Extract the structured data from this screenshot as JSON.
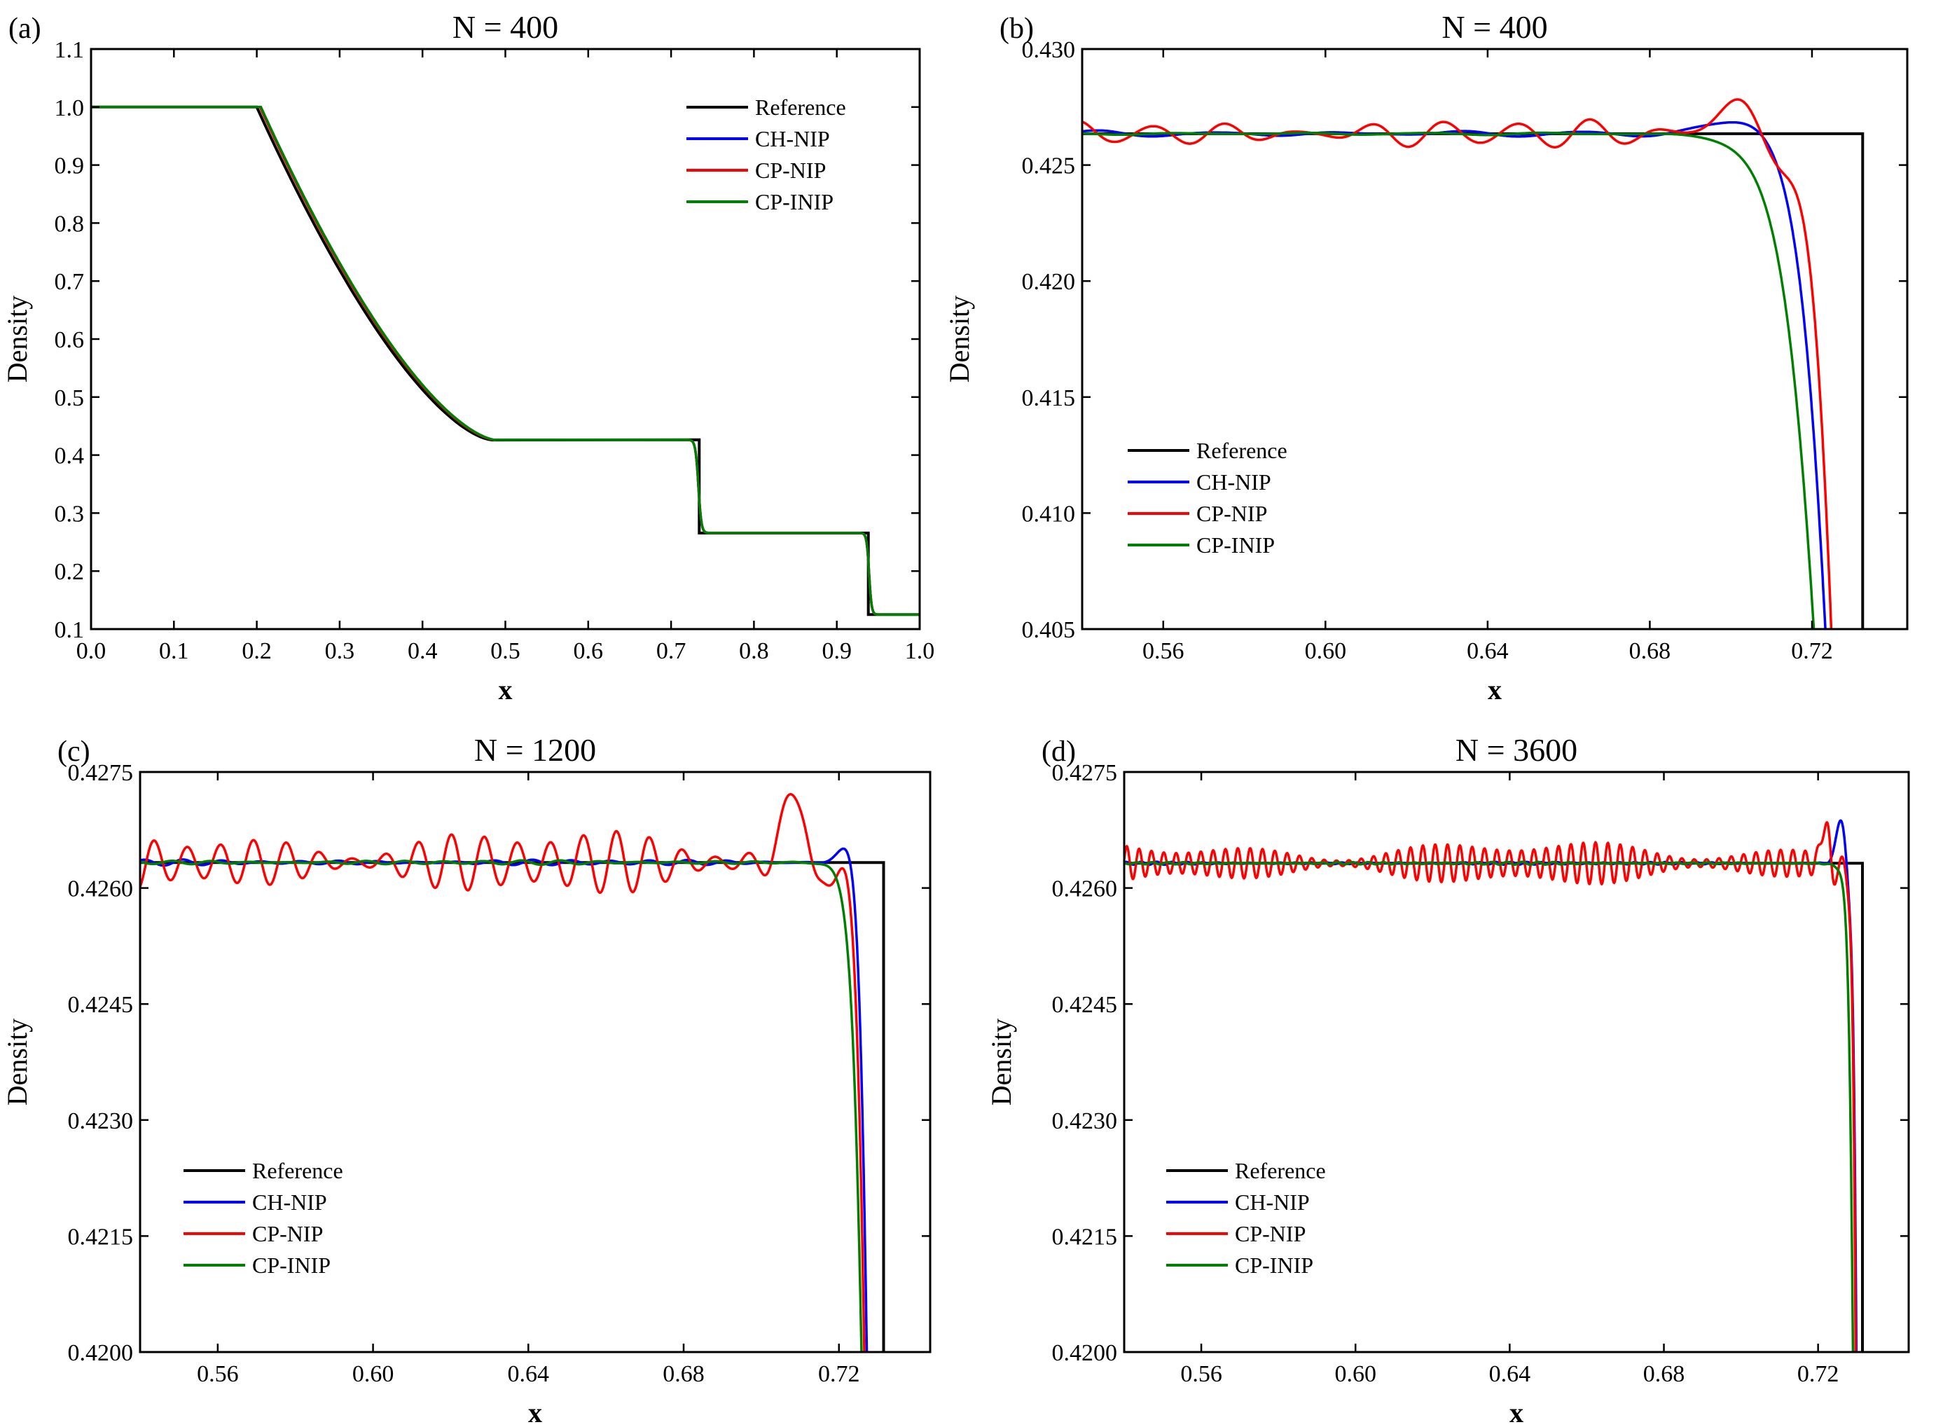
{
  "chart_data": [
    {
      "panel_label": "(a)",
      "type": "line",
      "title": "N = 400",
      "xlabel": "x",
      "ylabel": "Density",
      "xlim": [
        0.0,
        1.0
      ],
      "ylim": [
        0.1,
        1.1
      ],
      "xticks": [
        "0.0",
        "0.1",
        "0.2",
        "0.3",
        "0.4",
        "0.5",
        "0.6",
        "0.7",
        "0.8",
        "0.9",
        "1.0"
      ],
      "yticks": [
        "0.1",
        "0.2",
        "0.3",
        "0.4",
        "0.5",
        "0.6",
        "0.7",
        "0.8",
        "0.9",
        "1.0",
        "1.1"
      ],
      "legend": {
        "position": "top-right",
        "entries": [
          "Reference",
          "CH-NIP",
          "CP-NIP",
          "CP-INIP"
        ]
      },
      "series": [
        {
          "name": "Reference",
          "color": "#000000",
          "kind": "reference"
        },
        {
          "name": "CH-NIP",
          "color": "#0000ff",
          "kind": "smooth",
          "amp": 0.0,
          "shift": 0.004
        },
        {
          "name": "CP-NIP",
          "color": "#ff0000",
          "kind": "smooth",
          "amp": 0.0,
          "shift": 0.004
        },
        {
          "name": "CP-INIP",
          "color": "#008000",
          "kind": "smooth",
          "amp": 0.0,
          "shift": 0.005
        }
      ]
    },
    {
      "panel_label": "(b)",
      "type": "line",
      "title": "N = 400",
      "xlabel": "x",
      "ylabel": "Density",
      "xlim": [
        0.54,
        0.7435
      ],
      "ylim": [
        0.405,
        0.43
      ],
      "xticks": [
        "0.56",
        "0.60",
        "0.64",
        "0.68",
        "0.72"
      ],
      "yticks": [
        "0.405",
        "0.410",
        "0.415",
        "0.420",
        "0.425",
        "0.430"
      ],
      "legend": {
        "position": "lower-left",
        "entries": [
          "Reference",
          "CH-NIP",
          "CP-NIP",
          "CP-INIP"
        ]
      },
      "plateau": 0.42635,
      "contact_x": 0.7325,
      "series": [
        {
          "name": "Reference",
          "color": "#000000",
          "kind": "step"
        },
        {
          "name": "CH-NIP",
          "color": "#0000ff",
          "amp": 0.00015,
          "period": 0.03,
          "edge_x": 0.7275,
          "width": 0.0045,
          "peak": 0.4272,
          "peak_x": 0.707
        },
        {
          "name": "CP-NIP",
          "color": "#ff0000",
          "amp": 0.0007,
          "period": 0.018,
          "edge_x": 0.728,
          "width": 0.0035,
          "peak": 0.4276,
          "peak_x": 0.702
        },
        {
          "name": "CP-INIP",
          "color": "#008000",
          "amp": 6e-05,
          "period": 0.03,
          "edge_x": 0.7255,
          "width": 0.0055,
          "peak": 0.4265,
          "peak_x": 0.71
        }
      ]
    },
    {
      "panel_label": "(c)",
      "type": "line",
      "title": "N = 1200",
      "xlabel": "x",
      "ylabel": "Density",
      "xlim": [
        0.54,
        0.7435
      ],
      "ylim": [
        0.42,
        0.4275
      ],
      "xticks": [
        "0.56",
        "0.60",
        "0.64",
        "0.68",
        "0.72"
      ],
      "yticks": [
        "0.4200",
        "0.4215",
        "0.4230",
        "0.4245",
        "0.4260",
        "0.4275"
      ],
      "legend": {
        "position": "lower-left",
        "entries": [
          "Reference",
          "CH-NIP",
          "CP-NIP",
          "CP-INIP"
        ]
      },
      "plateau": 0.42633,
      "contact_x": 0.7315,
      "series": [
        {
          "name": "Reference",
          "color": "#000000",
          "kind": "step"
        },
        {
          "name": "CH-NIP",
          "color": "#0000ff",
          "amp": 4e-05,
          "period": 0.01,
          "edge_x": 0.7285,
          "width": 0.0015,
          "peak": 0.4269,
          "peak_x": 0.7245
        },
        {
          "name": "CP-NIP",
          "color": "#ff0000",
          "amp": 0.00045,
          "period": 0.0085,
          "edge_x": 0.728,
          "width": 0.0015,
          "peak": 0.4274,
          "peak_x": 0.709
        },
        {
          "name": "CP-INIP",
          "color": "#008000",
          "amp": 3e-05,
          "period": 0.01,
          "edge_x": 0.7275,
          "width": 0.0018,
          "peak": 0.42635,
          "peak_x": 0.72
        }
      ]
    },
    {
      "panel_label": "(d)",
      "type": "line",
      "title": "N = 3600",
      "xlabel": "x",
      "ylabel": "Density",
      "xlim": [
        0.54,
        0.7435
      ],
      "ylim": [
        0.42,
        0.4275
      ],
      "xticks": [
        "0.56",
        "0.60",
        "0.64",
        "0.68",
        "0.72"
      ],
      "yticks": [
        "0.4200",
        "0.4215",
        "0.4230",
        "0.4245",
        "0.4260",
        "0.4275"
      ],
      "legend": {
        "position": "lower-left",
        "entries": [
          "Reference",
          "CH-NIP",
          "CP-NIP",
          "CP-INIP"
        ]
      },
      "plateau": 0.42632,
      "contact_x": 0.7315,
      "series": [
        {
          "name": "Reference",
          "color": "#000000",
          "kind": "step"
        },
        {
          "name": "CH-NIP",
          "color": "#0000ff",
          "amp": 2e-05,
          "period": 0.004,
          "edge_x": 0.7305,
          "width": 0.0006,
          "peak": 0.4269,
          "peak_x": 0.726
        },
        {
          "name": "CP-NIP",
          "color": "#ff0000",
          "amp": 0.0003,
          "period": 0.0032,
          "edge_x": 0.7303,
          "width": 0.0006,
          "peak": 0.4269,
          "peak_x": 0.722
        },
        {
          "name": "CP-INIP",
          "color": "#008000",
          "amp": 2e-05,
          "period": 0.004,
          "edge_x": 0.7298,
          "width": 0.0008,
          "peak": 0.4263,
          "peak_x": 0.724
        }
      ]
    }
  ]
}
